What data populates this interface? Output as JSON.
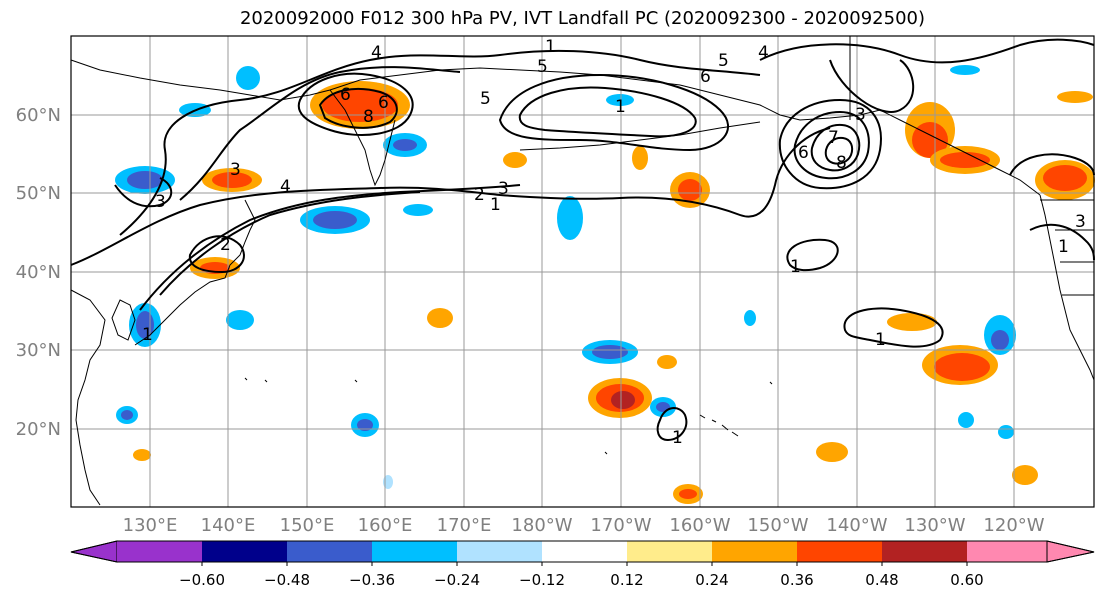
{
  "title": "2020092000 F012 300 hPa PV, IVT Landfall PC (2020092300 - 2020092500)",
  "lat_labels": [
    "60°N",
    "50°N",
    "40°N",
    "30°N",
    "20°N"
  ],
  "lon_labels": [
    "130°E",
    "140°E",
    "150°E",
    "160°E",
    "170°E",
    "180°W",
    "170°W",
    "160°W",
    "150°W",
    "140°W",
    "130°W",
    "120°W"
  ],
  "contour_labels": [
    "4",
    "1",
    "5",
    "4",
    "5",
    "6",
    "5",
    "6",
    "6",
    "8",
    "1",
    "3",
    "7",
    "6",
    "8",
    "3",
    "2",
    "3",
    "1",
    "4",
    "3",
    "2",
    "1",
    "1",
    "1",
    "1",
    "1",
    "3"
  ],
  "colorbar": {
    "tick_labels": [
      "−0.60",
      "−0.48",
      "−0.36",
      "−0.24",
      "−0.12",
      "0.12",
      "0.24",
      "0.36",
      "0.48",
      "0.60"
    ],
    "colors": [
      "#9932cc",
      "#00008b",
      "#3a5ccc",
      "#00bfff",
      "#b0e2ff",
      "#ffffff",
      "#ffec8b",
      "#ffa500",
      "#ff4500",
      "#b22222",
      "#ff88b0"
    ]
  },
  "colors": {
    "grid": "#999999",
    "coast": "#000000",
    "contour": "#000000"
  }
}
